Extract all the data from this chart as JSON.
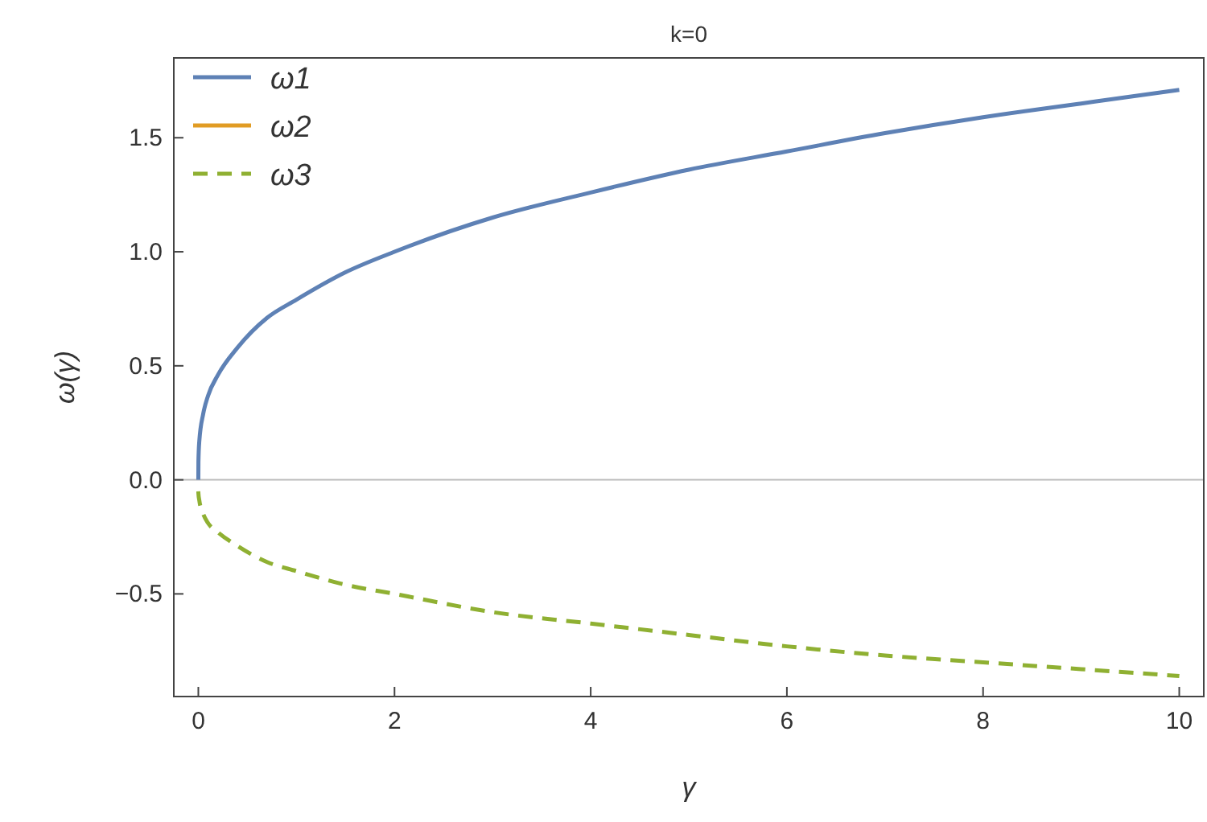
{
  "chart_data": {
    "type": "line",
    "title": "k=0",
    "xlabel": "γ",
    "ylabel": "ω(γ)",
    "x": [
      0,
      0.001,
      0.01,
      0.05,
      0.1,
      0.2,
      0.4,
      0.7,
      1,
      1.5,
      2,
      3,
      4,
      5,
      6,
      7,
      8,
      9,
      10
    ],
    "series": [
      {
        "name": "ω1",
        "color": "#5e81b5",
        "line_style": "solid",
        "values": [
          0,
          0.08,
          0.17,
          0.29,
          0.37,
          0.46,
          0.58,
          0.71,
          0.79,
          0.91,
          1.0,
          1.15,
          1.26,
          1.36,
          1.44,
          1.52,
          1.59,
          1.65,
          1.71
        ]
      },
      {
        "name": "ω2",
        "color": "#e19c24",
        "line_style": "solid",
        "values": [
          null,
          null,
          null,
          null,
          null,
          null,
          null,
          null,
          null,
          null,
          null,
          null,
          null,
          null,
          null,
          null,
          null,
          null,
          null
        ]
      },
      {
        "name": "ω3",
        "color": "#8fb032",
        "line_style": "dashed",
        "values": [
          -0.05,
          -0.06,
          -0.09,
          -0.15,
          -0.19,
          -0.23,
          -0.29,
          -0.36,
          -0.4,
          -0.46,
          -0.5,
          -0.58,
          -0.63,
          -0.68,
          -0.73,
          -0.77,
          -0.8,
          -0.83,
          -0.86
        ]
      }
    ],
    "xlim": [
      -0.25,
      10.25
    ],
    "ylim": [
      -0.95,
      1.85
    ],
    "xticks": [
      0,
      2,
      4,
      6,
      8,
      10
    ],
    "yticks": [
      {
        "value": -0.5,
        "label": "−0.5"
      },
      {
        "value": 0,
        "label": "0.0"
      },
      {
        "value": 0.5,
        "label": "0.5"
      },
      {
        "value": 1,
        "label": "1.0"
      },
      {
        "value": 1.5,
        "label": "1.5"
      }
    ],
    "ref_lines": [
      {
        "axis": "y",
        "value": 0,
        "color": "#bbbbbb"
      }
    ],
    "legend": "top left",
    "grid": false
  }
}
